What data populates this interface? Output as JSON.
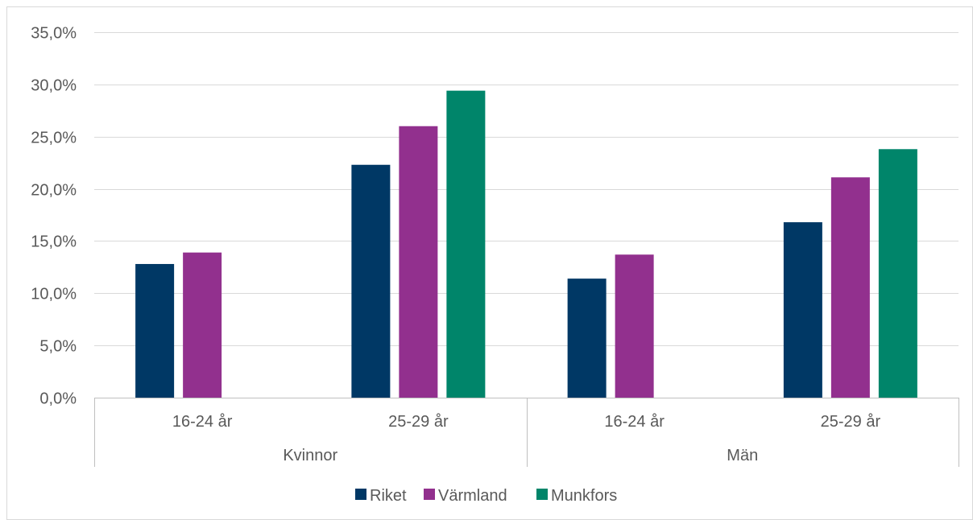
{
  "chart_data": {
    "type": "bar",
    "title": "",
    "xlabel": "",
    "ylabel": "",
    "ylim": [
      0,
      0.35
    ],
    "y_tick_step": 0.05,
    "y_tick_labels": [
      "0,0%",
      "5,0%",
      "10,0%",
      "15,0%",
      "20,0%",
      "25,0%",
      "30,0%",
      "35,0%"
    ],
    "grid": true,
    "legend_position": "bottom",
    "groups": [
      {
        "label": "Kvinnor",
        "categories": [
          "16-24 år",
          "25-29 år"
        ]
      },
      {
        "label": "Män",
        "categories": [
          "16-24 år",
          "25-29 år"
        ]
      }
    ],
    "series": [
      {
        "name": "Riket",
        "color": "#003865",
        "values": [
          0.128,
          0.223,
          0.114,
          0.168
        ]
      },
      {
        "name": "Värmland",
        "color": "#92308E",
        "values": [
          0.139,
          0.26,
          0.137,
          0.211
        ]
      },
      {
        "name": "Munkfors",
        "color": "#00856A",
        "values": [
          null,
          0.294,
          null,
          0.238
        ]
      }
    ]
  },
  "colors": {
    "gridline": "#D9D9D9",
    "axis": "#BFBFBF",
    "text": "#595959",
    "border": "#D9D9D9"
  }
}
